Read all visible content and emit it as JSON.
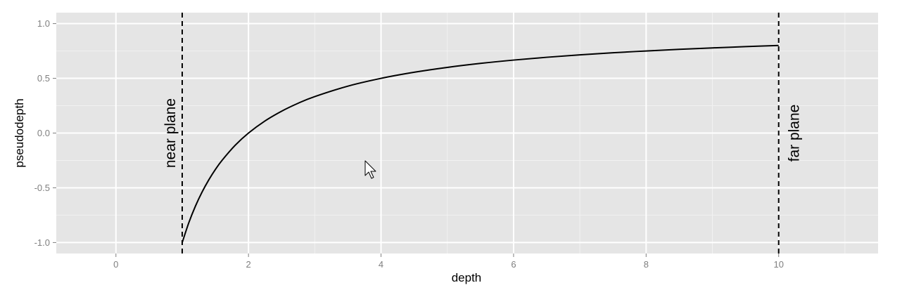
{
  "chart_data": {
    "type": "line",
    "title": "",
    "xlabel": "depth",
    "ylabel": "pseudodepth",
    "xlim": [
      -0.9,
      11.5
    ],
    "ylim": [
      -1.1,
      1.1
    ],
    "xticks": [
      0,
      2,
      4,
      6,
      8,
      10
    ],
    "xtick_labels": [
      "0",
      "2",
      "4",
      "6",
      "8",
      "10"
    ],
    "yticks": [
      -1.0,
      -0.5,
      0.0,
      0.5,
      1.0
    ],
    "ytick_labels": [
      "-1.0",
      "-0.5",
      "0.0",
      "0.5",
      "1.0"
    ],
    "grid": true,
    "series": [
      {
        "x": [
          1.0,
          1.1,
          1.2,
          1.3,
          1.4,
          1.5,
          1.6,
          1.8,
          2.0,
          2.25,
          2.5,
          2.75,
          3.0,
          3.5,
          4.0,
          4.5,
          5.0,
          5.5,
          6.0,
          6.5,
          7.0,
          7.5,
          8.0,
          8.5,
          9.0,
          9.5,
          10.0
        ],
        "y": [
          -1.0,
          -0.8182,
          -0.6667,
          -0.5385,
          -0.4286,
          -0.3333,
          -0.25,
          -0.1111,
          0.0,
          0.1111,
          0.2,
          0.2727,
          0.3333,
          0.4286,
          0.5,
          0.5556,
          0.6,
          0.6364,
          0.6667,
          0.6923,
          0.7143,
          0.7333,
          0.75,
          0.7647,
          0.7778,
          0.7895,
          0.8
        ],
        "color": "#000000"
      }
    ],
    "vlines": [
      {
        "x": 1,
        "label": "near plane",
        "style": "dashed"
      },
      {
        "x": 10,
        "label": "far plane",
        "style": "dashed"
      }
    ],
    "colors": {
      "panel_background": "#e5e5e5",
      "grid_major": "#ffffff",
      "grid_minor": "#f2f2f2",
      "line": "#000000"
    }
  }
}
